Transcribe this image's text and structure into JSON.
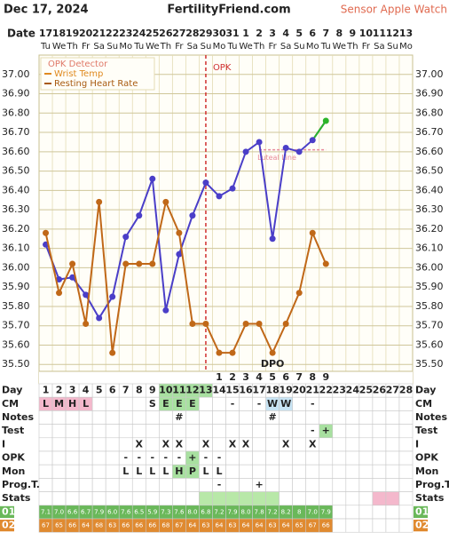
{
  "header": {
    "date": "Dec 17, 2024",
    "site": "FertilityFriend.com",
    "sensor": "Sensor Apple Watch"
  },
  "date_label": "Date",
  "days": [
    "17",
    "18",
    "19",
    "20",
    "21",
    "22",
    "23",
    "24",
    "25",
    "26",
    "27",
    "28",
    "29",
    "30",
    "31",
    "1",
    "2",
    "3",
    "4",
    "5",
    "6",
    "7",
    "8",
    "9",
    "10",
    "11",
    "12",
    "13"
  ],
  "weekdays": [
    "Tu",
    "We",
    "Th",
    "Fr",
    "Sa",
    "Su",
    "Mo",
    "Tu",
    "We",
    "Th",
    "Fr",
    "Sa",
    "Su",
    "Mo",
    "Tu",
    "We",
    "Th",
    "Fr",
    "Sa",
    "Su",
    "Mo",
    "Tu",
    "We",
    "Th",
    "Fr",
    "Sa",
    "Su",
    "Mo"
  ],
  "chart_data": {
    "type": "line",
    "ylim": [
      35.4,
      37.1
    ],
    "yticks": [
      {
        "value": 35.5,
        "label": "35.50"
      },
      {
        "value": 35.6,
        "label": "35.60"
      },
      {
        "value": 35.7,
        "label": "35.70"
      },
      {
        "value": 35.8,
        "label": "35.80"
      },
      {
        "value": 35.9,
        "label": "35.90"
      },
      {
        "value": 36.0,
        "label": "36.00"
      },
      {
        "value": 36.1,
        "label": "36.10"
      },
      {
        "value": 36.2,
        "label": "36.20"
      },
      {
        "value": 36.3,
        "label": "36.30"
      },
      {
        "value": 36.4,
        "label": "36.40"
      },
      {
        "value": 36.5,
        "label": "36.50"
      },
      {
        "value": 36.6,
        "label": "36.60"
      },
      {
        "value": 36.7,
        "label": "36.70"
      },
      {
        "value": 36.8,
        "label": "36.80"
      },
      {
        "value": 36.9,
        "label": "36.90"
      },
      {
        "value": 37.0,
        "label": "37.00"
      }
    ],
    "grid": true,
    "legend": [
      {
        "label": "OPK Detector",
        "color": "#e07a6a"
      },
      {
        "label": "Wrist Temp",
        "color": "#e08a20"
      },
      {
        "label": "Resting Heart Rate",
        "color": "#a85a10"
      }
    ],
    "series": [
      {
        "color": "#4a3ec8",
        "end_color": "#2bb52b",
        "values": [
          36.12,
          35.94,
          35.95,
          35.86,
          35.74,
          35.85,
          36.16,
          36.27,
          36.46,
          35.78,
          36.07,
          36.27,
          36.44,
          36.37,
          36.41,
          36.6,
          36.65,
          36.15,
          36.62,
          36.6,
          36.66,
          36.76,
          null,
          null,
          null,
          null,
          null,
          null
        ]
      },
      {
        "color": "#c06818",
        "values": [
          36.18,
          35.87,
          36.02,
          35.71,
          36.34,
          35.56,
          36.02,
          36.02,
          36.02,
          36.34,
          36.18,
          35.71,
          35.71,
          35.56,
          35.56,
          35.71,
          35.71,
          35.56,
          35.71,
          35.87,
          36.18,
          36.02,
          null,
          null,
          null,
          null,
          null,
          null
        ]
      }
    ],
    "marker_line": {
      "index": 12,
      "label": "OPK",
      "color": "#d03030"
    },
    "luteal_line": {
      "label": "Luteal Line",
      "value": 36.61,
      "from": 16,
      "to": 21,
      "color": "#e88a9a"
    },
    "dpo_label": "DPO",
    "dpo": [
      null,
      null,
      null,
      null,
      null,
      null,
      null,
      null,
      null,
      null,
      null,
      null,
      null,
      1,
      2,
      3,
      4,
      5,
      6,
      7,
      8,
      9,
      null,
      null,
      null,
      null,
      null,
      null
    ]
  },
  "table": {
    "rows": [
      {
        "label": "Day",
        "cells": [
          "1",
          "2",
          "3",
          "4",
          "5",
          "6",
          "7",
          "8",
          "9",
          "10",
          "11",
          "12",
          "13",
          "14",
          "15",
          "16",
          "17",
          "18",
          "19",
          "20",
          "21",
          "22",
          "23",
          "24",
          "25",
          "26",
          "27",
          "28"
        ],
        "bg": {
          "9": "#a8e0a0",
          "10": "#a8e0a0",
          "11": "#a8e0a0",
          "12": "#a8e0a0"
        }
      },
      {
        "label": "CM",
        "cells": [
          "L",
          "M",
          "H",
          "L",
          null,
          null,
          null,
          null,
          "S",
          "E",
          "E",
          "E",
          null,
          null,
          "-",
          null,
          "-",
          "W",
          "W",
          null,
          "-",
          null,
          null,
          null,
          null,
          null,
          null,
          null
        ],
        "bg": {
          "0": "#f4b8cc",
          "1": "#f4b8cc",
          "2": "#f4b8cc",
          "3": "#f4b8cc",
          "9": "#a8e0a0",
          "10": "#a8e0a0",
          "11": "#a8e0a0",
          "17": "#c8e4f4",
          "18": "#c8e4f4"
        }
      },
      {
        "label": "Notes",
        "cells": [
          null,
          null,
          null,
          null,
          null,
          null,
          null,
          null,
          null,
          null,
          "#",
          null,
          null,
          null,
          null,
          null,
          null,
          "#",
          null,
          null,
          null,
          null,
          null,
          null,
          null,
          null,
          null,
          null
        ],
        "bg": {}
      },
      {
        "label": "Test",
        "cells": [
          null,
          null,
          null,
          null,
          null,
          null,
          null,
          null,
          null,
          null,
          null,
          null,
          null,
          null,
          null,
          null,
          null,
          null,
          null,
          null,
          "-",
          "+",
          null,
          null,
          null,
          null,
          null,
          null
        ],
        "bg": {
          "21": "#a8e0a0"
        }
      },
      {
        "label": "I",
        "cells": [
          null,
          null,
          null,
          null,
          null,
          null,
          null,
          "X",
          null,
          "X",
          "X",
          null,
          "X",
          null,
          "X",
          "X",
          null,
          null,
          "X",
          null,
          "X",
          null,
          null,
          null,
          null,
          null,
          null,
          null
        ],
        "bg": {}
      },
      {
        "label": "OPK",
        "cells": [
          null,
          null,
          null,
          null,
          null,
          null,
          "-",
          "-",
          "-",
          "-",
          "-",
          "+",
          "-",
          "-",
          null,
          null,
          null,
          null,
          null,
          null,
          null,
          null,
          null,
          null,
          null,
          null,
          null,
          null
        ],
        "bg": {
          "11": "#a8e0a0"
        }
      },
      {
        "label": "Mon",
        "cells": [
          null,
          null,
          null,
          null,
          null,
          null,
          "L",
          "L",
          "L",
          "L",
          "H",
          "P",
          "L",
          "L",
          null,
          null,
          null,
          null,
          null,
          null,
          null,
          null,
          null,
          null,
          null,
          null,
          null,
          null
        ],
        "bg": {
          "10": "#a8e0a0",
          "11": "#a8e0a0"
        }
      },
      {
        "label": "Prog.T.",
        "cells": [
          null,
          null,
          null,
          null,
          null,
          null,
          null,
          null,
          null,
          null,
          null,
          null,
          null,
          "-",
          null,
          null,
          "+",
          null,
          null,
          null,
          null,
          null,
          null,
          null,
          null,
          null,
          null,
          null
        ],
        "bg": {}
      },
      {
        "label": "Stats",
        "cells": [
          null,
          null,
          null,
          null,
          null,
          null,
          null,
          null,
          null,
          null,
          null,
          null,
          null,
          null,
          null,
          null,
          null,
          null,
          null,
          null,
          null,
          null,
          null,
          null,
          null,
          null,
          null,
          null
        ],
        "bg": {
          "12": "#b8e8a8",
          "13": "#b8e8a8",
          "14": "#b8e8a8",
          "15": "#b8e8a8",
          "16": "#b8e8a8",
          "17": "#b8e8a8",
          "25": "#f4b8cc",
          "26": "#f4b8cc"
        }
      },
      {
        "label": "01",
        "label_bg": "#6ab85a",
        "cells": [
          "7.1",
          "7.0",
          "6.6",
          "6.7",
          "7.9",
          "6.0",
          "7.6",
          "6.5",
          "5.9",
          "7.3",
          "7.6",
          "8.0",
          "6.8",
          "7.2",
          "7.9",
          "8.0",
          "7.8",
          "7.2",
          "8.2",
          "8",
          "7.0",
          "7.9",
          null,
          null,
          null,
          null,
          null,
          null
        ],
        "fill": "#6ab85a"
      },
      {
        "label": "02",
        "label_bg": "#e08a30",
        "cells": [
          "67",
          "65",
          "66",
          "64",
          "68",
          "63",
          "66",
          "66",
          "66",
          "68",
          "67",
          "64",
          "63",
          "64",
          "63",
          "64",
          "64",
          "63",
          "64",
          "65",
          "67",
          "66",
          null,
          null,
          null,
          null,
          null,
          null
        ],
        "fill": "#e08a30"
      }
    ]
  }
}
